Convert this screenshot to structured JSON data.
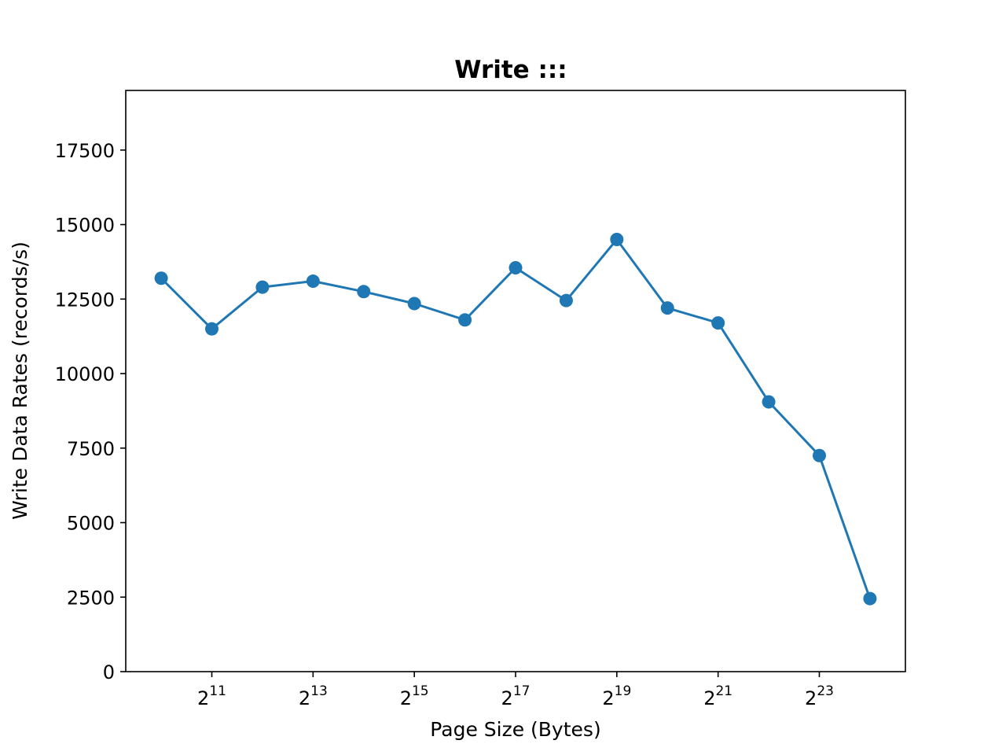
{
  "chart_data": {
    "type": "line",
    "title": "Write :::",
    "xlabel": "Page Size (Bytes)",
    "ylabel": "Write Data Rates (records/s)",
    "x_scale": "log2",
    "x_exponents": [
      10,
      11,
      12,
      13,
      14,
      15,
      16,
      17,
      18,
      19,
      20,
      21,
      22,
      23,
      24
    ],
    "x_tick_exponents": [
      11,
      13,
      15,
      17,
      19,
      21,
      23
    ],
    "x_tick_base": "2",
    "xlim_exponent": [
      9.3,
      24.7
    ],
    "y_ticks": [
      0,
      2500,
      5000,
      7500,
      10000,
      12500,
      15000,
      17500
    ],
    "ylim": [
      0,
      19500
    ],
    "grid": false,
    "series": [
      {
        "name": "Write",
        "color": "#1f77b4",
        "values": [
          13200,
          11500,
          12900,
          13100,
          12750,
          12350,
          11800,
          13550,
          12450,
          14500,
          12200,
          11700,
          9050,
          7250,
          2450
        ]
      }
    ]
  }
}
